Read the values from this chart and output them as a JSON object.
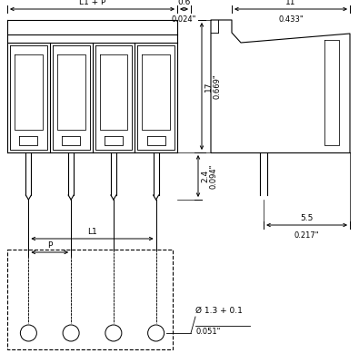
{
  "bg_color": "#ffffff",
  "lc": "#000000",
  "fig_width": 3.95,
  "fig_height": 4.0,
  "dpi": 100,
  "labels": {
    "L1P": "L1 + P",
    "dim_06": "0.6",
    "dim_024": "0.024\"",
    "dim_24": "2.4",
    "dim_094": "0.094\"",
    "dim_11": "11",
    "dim_433": "0.433\"",
    "dim_17": "17",
    "dim_669": "0.669\"",
    "dim_55": "5.5",
    "dim_217": "0.217\"",
    "L1": "L1",
    "P": "P",
    "hole": "Ø 1.3 + 0.1",
    "hole_inch": "0.051\""
  }
}
